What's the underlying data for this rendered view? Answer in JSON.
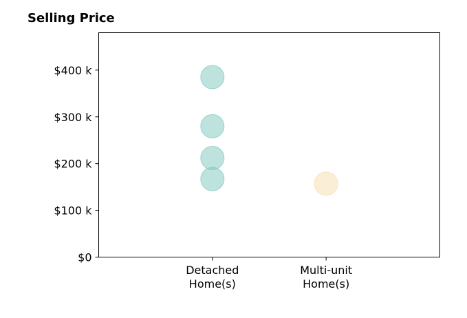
{
  "chart_data": {
    "type": "scatter",
    "title": "Selling Price",
    "xlabel": "",
    "ylabel": "",
    "categories": [
      [
        "Detached",
        "Home(s)"
      ],
      [
        "Multi-unit",
        "Home(s)"
      ]
    ],
    "x_range": [
      -1,
      2
    ],
    "ylim": [
      0,
      480000
    ],
    "yticks": [
      0,
      100000,
      200000,
      300000,
      400000
    ],
    "ytick_labels": [
      "$0",
      "$100 k",
      "$200 k",
      "$300 k",
      "$400 k"
    ],
    "grid": false,
    "series": [
      {
        "category_index": 0,
        "color": "#7ec8c0",
        "values": [
          385000,
          280000,
          212000,
          167000
        ]
      },
      {
        "category_index": 1,
        "color": "#f5dfad",
        "values": [
          157000
        ]
      }
    ]
  }
}
